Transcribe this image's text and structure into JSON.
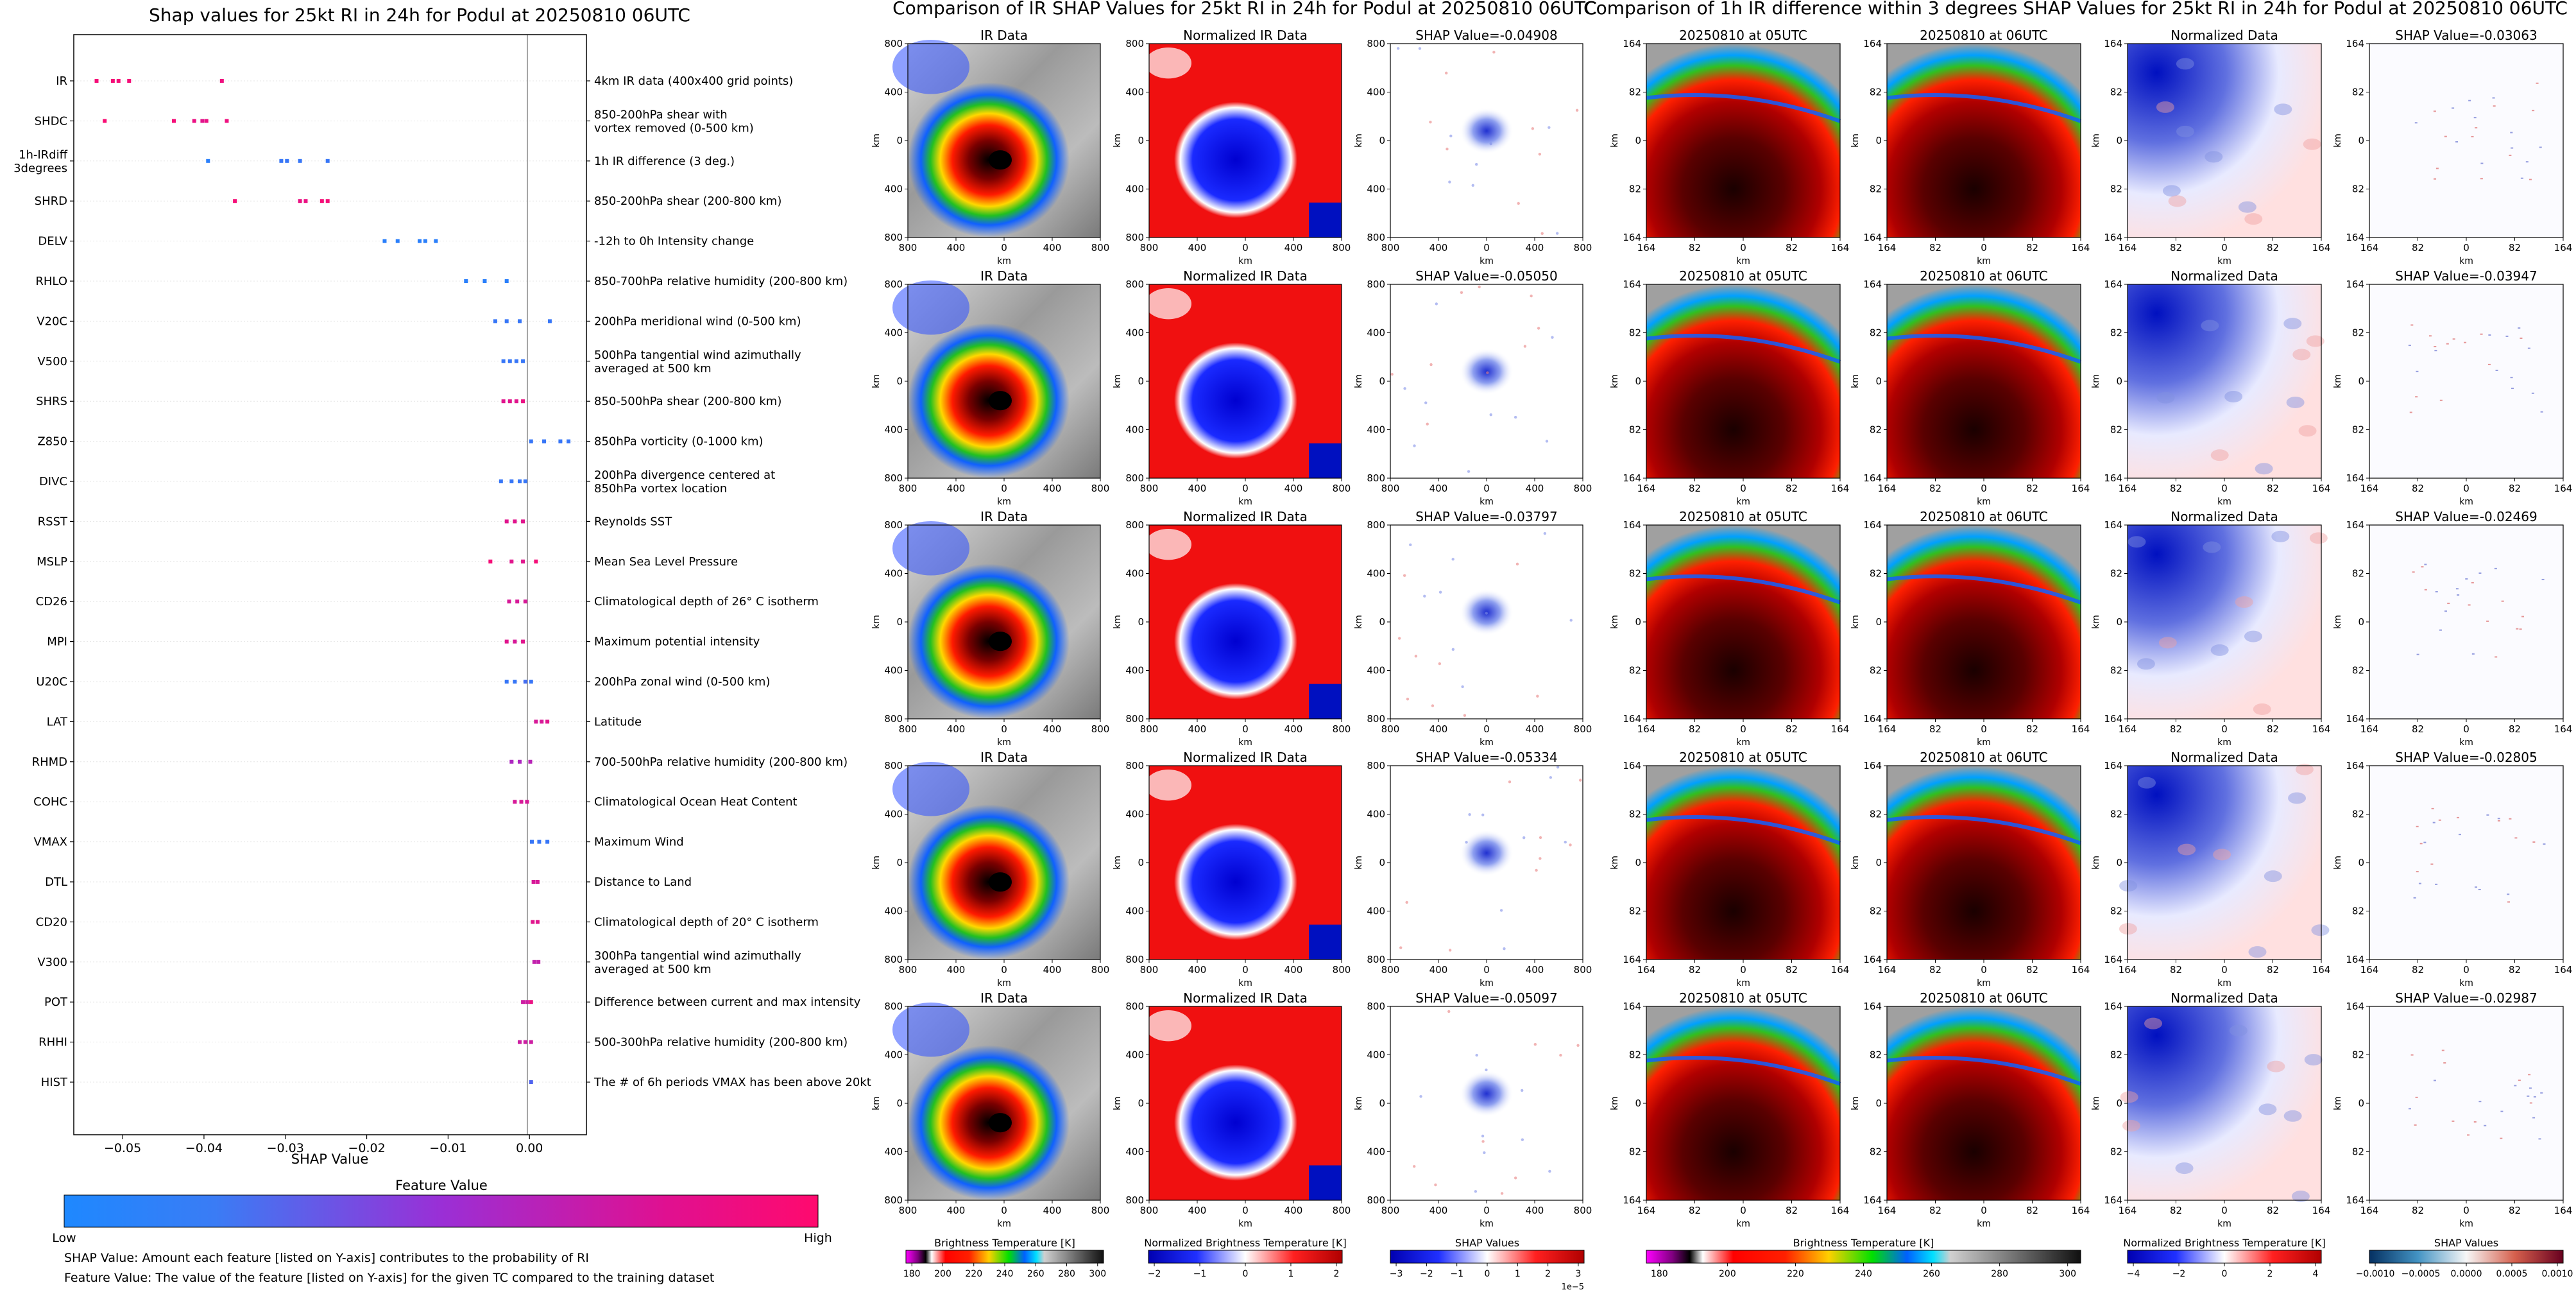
{
  "colors": {
    "low": "#1e88ff",
    "mid": "#9a2fd6",
    "high": "#ff0a6e",
    "grid": "#e6e6e6"
  },
  "left": {
    "title": "Shap values for 25kt RI in 24h for Podul at 20250810 06UTC",
    "xlabel": "SHAP Value",
    "legend_title": "Feature Value",
    "legend_low": "Low",
    "legend_high": "High",
    "note1": "SHAP Value: Amount each feature [listed on Y-axis] contributes to the probability of RI",
    "note2": "Feature Value: The value of the feature [listed on Y-axis] for the given TC compared to the training dataset"
  },
  "chart_data": [
    {
      "type": "scatter",
      "title": "Shap values for 25kt RI in 24h for Podul at 20250810 06UTC",
      "xlabel": "SHAP Value",
      "xlim": [
        -0.056,
        0.007
      ],
      "xticks": [
        "-0.05",
        "-0.04",
        "-0.03",
        "-0.02",
        "-0.01",
        "0.00"
      ],
      "xtick_values": [
        -0.05,
        -0.04,
        -0.03,
        -0.02,
        -0.01,
        0.0
      ],
      "grid": "horizontal",
      "legend": "colorbar-bottom",
      "features": [
        {
          "name": "IR",
          "desc": "4km IR data (400x400 grid points)",
          "points": [
            [
              -0.0532,
              0.95
            ],
            [
              -0.0512,
              0.95
            ],
            [
              -0.0505,
              0.95
            ],
            [
              -0.0492,
              0.95
            ],
            [
              -0.0378,
              0.92
            ]
          ]
        },
        {
          "name": "SHDC",
          "desc": "850-200hPa shear with\nvortex removed (0-500 km)",
          "points": [
            [
              -0.0522,
              0.97
            ],
            [
              -0.0437,
              0.95
            ],
            [
              -0.0412,
              0.9
            ],
            [
              -0.0402,
              0.85
            ],
            [
              -0.0397,
              0.9
            ],
            [
              -0.0372,
              0.92
            ]
          ]
        },
        {
          "name": "1h-IRdiff\n3degrees",
          "desc": "1h IR difference (3 deg.)",
          "points": [
            [
              -0.0395,
              0.05
            ],
            [
              -0.0305,
              0.1
            ],
            [
              -0.0298,
              0.1
            ],
            [
              -0.0282,
              0.1
            ],
            [
              -0.0248,
              0.1
            ]
          ]
        },
        {
          "name": "SHRD",
          "desc": "850-200hPa shear (200-800 km)",
          "points": [
            [
              -0.0362,
              0.95
            ],
            [
              -0.0282,
              0.9
            ],
            [
              -0.0275,
              0.9
            ],
            [
              -0.0255,
              0.95
            ],
            [
              -0.0248,
              0.95
            ]
          ]
        },
        {
          "name": "DELV",
          "desc": "-12h to 0h Intensity change",
          "points": [
            [
              -0.0178,
              0.05
            ],
            [
              -0.0162,
              0.05
            ],
            [
              -0.0135,
              0.05
            ],
            [
              -0.0128,
              0.05
            ],
            [
              -0.0115,
              0.05
            ]
          ]
        },
        {
          "name": "RHLO",
          "desc": "850-700hPa relative humidity (200-800 km)",
          "points": [
            [
              -0.0078,
              0.05
            ],
            [
              -0.0055,
              0.05
            ],
            [
              -0.0028,
              0.05
            ]
          ]
        },
        {
          "name": "V20C",
          "desc": "200hPa meridional wind (0-500 km)",
          "points": [
            [
              -0.0042,
              0.1
            ],
            [
              -0.0028,
              0.1
            ],
            [
              -0.0012,
              0.1
            ],
            [
              0.0025,
              0.1
            ]
          ]
        },
        {
          "name": "V500",
          "desc": "500hPa tangential wind azimuthally\naveraged at 500 km",
          "points": [
            [
              -0.0032,
              0.1
            ],
            [
              -0.0024,
              0.1
            ],
            [
              -0.0016,
              0.1
            ],
            [
              -0.0008,
              0.1
            ]
          ]
        },
        {
          "name": "SHRS",
          "desc": "850-500hPa shear (200-800 km)",
          "points": [
            [
              -0.0032,
              0.85
            ],
            [
              -0.0024,
              0.85
            ],
            [
              -0.0016,
              0.85
            ],
            [
              -0.0008,
              0.9
            ]
          ]
        },
        {
          "name": "Z850",
          "desc": "850hPa vorticity (0-1000 km)",
          "points": [
            [
              0.0002,
              0.1
            ],
            [
              0.0018,
              0.1
            ],
            [
              0.0038,
              0.1
            ],
            [
              0.0048,
              0.1
            ]
          ]
        },
        {
          "name": "DIVC",
          "desc": "200hPa divergence centered at\n850hPa vortex location",
          "points": [
            [
              -0.0035,
              0.1
            ],
            [
              -0.0022,
              0.1
            ],
            [
              -0.0012,
              0.1
            ],
            [
              -0.0005,
              0.1
            ]
          ]
        },
        {
          "name": "RSST",
          "desc": "Reynolds SST",
          "points": [
            [
              -0.0028,
              0.85
            ],
            [
              -0.0018,
              0.85
            ],
            [
              -0.0008,
              0.85
            ]
          ]
        },
        {
          "name": "MSLP",
          "desc": "Mean Sea Level Pressure",
          "points": [
            [
              -0.0048,
              0.95
            ],
            [
              -0.0022,
              0.85
            ],
            [
              -0.0008,
              0.85
            ],
            [
              0.0008,
              0.95
            ]
          ]
        },
        {
          "name": "CD26",
          "desc": "Climatological depth of 26° C isotherm",
          "points": [
            [
              -0.0025,
              0.8
            ],
            [
              -0.0015,
              0.8
            ],
            [
              -0.0005,
              0.8
            ]
          ]
        },
        {
          "name": "MPI",
          "desc": "Maximum potential intensity",
          "points": [
            [
              -0.0028,
              0.85
            ],
            [
              -0.0018,
              0.8
            ],
            [
              -0.0008,
              0.85
            ]
          ]
        },
        {
          "name": "U20C",
          "desc": "200hPa zonal wind (0-500 km)",
          "points": [
            [
              -0.0028,
              0.1
            ],
            [
              -0.0018,
              0.1
            ],
            [
              -0.0005,
              0.15
            ],
            [
              0.0002,
              0.1
            ]
          ]
        },
        {
          "name": "LAT",
          "desc": "Latitude",
          "points": [
            [
              0.0008,
              0.8
            ],
            [
              0.0015,
              0.8
            ],
            [
              0.0022,
              0.85
            ]
          ]
        },
        {
          "name": "RHMD",
          "desc": "700-500hPa relative humidity (200-800 km)",
          "points": [
            [
              -0.0022,
              0.6
            ],
            [
              -0.0012,
              0.6
            ],
            [
              0.0001,
              0.65
            ]
          ]
        },
        {
          "name": "COHC",
          "desc": "Climatological Ocean Heat Content",
          "points": [
            [
              -0.0018,
              0.8
            ],
            [
              -0.001,
              0.8
            ],
            [
              -0.0003,
              0.8
            ]
          ]
        },
        {
          "name": "VMAX",
          "desc": "Maximum Wind",
          "points": [
            [
              0.0003,
              0.1
            ],
            [
              0.0012,
              0.1
            ],
            [
              0.0022,
              0.1
            ]
          ]
        },
        {
          "name": "DTL",
          "desc": "Distance to Land",
          "points": [
            [
              0.0005,
              0.8
            ],
            [
              0.001,
              0.8
            ]
          ]
        },
        {
          "name": "CD20",
          "desc": "Climatological depth of 20° C isotherm",
          "points": [
            [
              0.0004,
              0.85
            ],
            [
              0.001,
              0.85
            ]
          ]
        },
        {
          "name": "V300",
          "desc": "300hPa tangential wind azimuthally\naveraged at 500 km",
          "points": [
            [
              0.0006,
              0.7
            ],
            [
              0.0011,
              0.7
            ]
          ]
        },
        {
          "name": "POT",
          "desc": "Difference between current and max intensity",
          "points": [
            [
              -0.0008,
              0.75
            ],
            [
              -0.0003,
              0.75
            ],
            [
              0.0002,
              0.9
            ]
          ]
        },
        {
          "name": "RHHI",
          "desc": "500-300hPa relative humidity (200-800 km)",
          "points": [
            [
              -0.0012,
              0.75
            ],
            [
              -0.0005,
              0.75
            ],
            [
              0.0002,
              0.75
            ]
          ]
        },
        {
          "name": "HIST",
          "desc": "The # of 6h periods VMAX has been above 20kt",
          "points": [
            [
              0.0002,
              0.2
            ]
          ]
        }
      ]
    },
    {
      "type": "heatmap",
      "title": "Comparison of IR SHAP Values for 25kt RI in 24h for Podul at 20250810 06UTC",
      "column_titles": [
        "IR Data",
        "Normalized IR Data"
      ],
      "shap_titles": [
        "SHAP Value=-0.04908",
        "SHAP Value=-0.05050",
        "SHAP Value=-0.03797",
        "SHAP Value=-0.05334",
        "SHAP Value=-0.05097"
      ],
      "xlabel": "km",
      "ylabel": "km",
      "ticks": [
        "800",
        "400",
        "0",
        "400",
        "800"
      ],
      "colorbars": [
        {
          "label": "Brightness Temperature [K]",
          "ticks": [
            "180",
            "200",
            "220",
            "240",
            "260",
            "280",
            "300"
          ]
        },
        {
          "label": "Normalized Brightness Temperature [K]",
          "ticks": [
            "−2",
            "−1",
            "0",
            "1",
            "2"
          ]
        },
        {
          "label": "SHAP Values",
          "ticks": [
            "−3",
            "−2",
            "−1",
            "0",
            "1",
            "2",
            "3"
          ],
          "exponent": "1e−5"
        }
      ]
    },
    {
      "type": "heatmap",
      "title": "Comparison of 1h IR difference within 3 degrees SHAP Values for 25kt RI in 24h for Podul at 20250810 06UTC",
      "column_titles": [
        "20250810 at 05UTC",
        "20250810 at 06UTC",
        "Normalized Data"
      ],
      "shap_titles": [
        "SHAP Value=-0.03063",
        "SHAP Value=-0.03947",
        "SHAP Value=-0.02469",
        "SHAP Value=-0.02805",
        "SHAP Value=-0.02987"
      ],
      "xlabel": "km",
      "ylabel": "km",
      "ticks": [
        "164",
        "82",
        "0",
        "82",
        "164"
      ],
      "colorbars": [
        {
          "label": "Brightness Temperature [K]",
          "ticks": [
            "180",
            "200",
            "220",
            "240",
            "260",
            "280",
            "300"
          ]
        },
        {
          "label": "Normalized Brightness Temperature [K]",
          "ticks": [
            "−4",
            "−2",
            "0",
            "2",
            "4"
          ]
        },
        {
          "label": "SHAP Values",
          "ticks": [
            "−0.0010",
            "−0.0005",
            "0.0000",
            "0.0005",
            "0.0010"
          ]
        }
      ]
    }
  ]
}
